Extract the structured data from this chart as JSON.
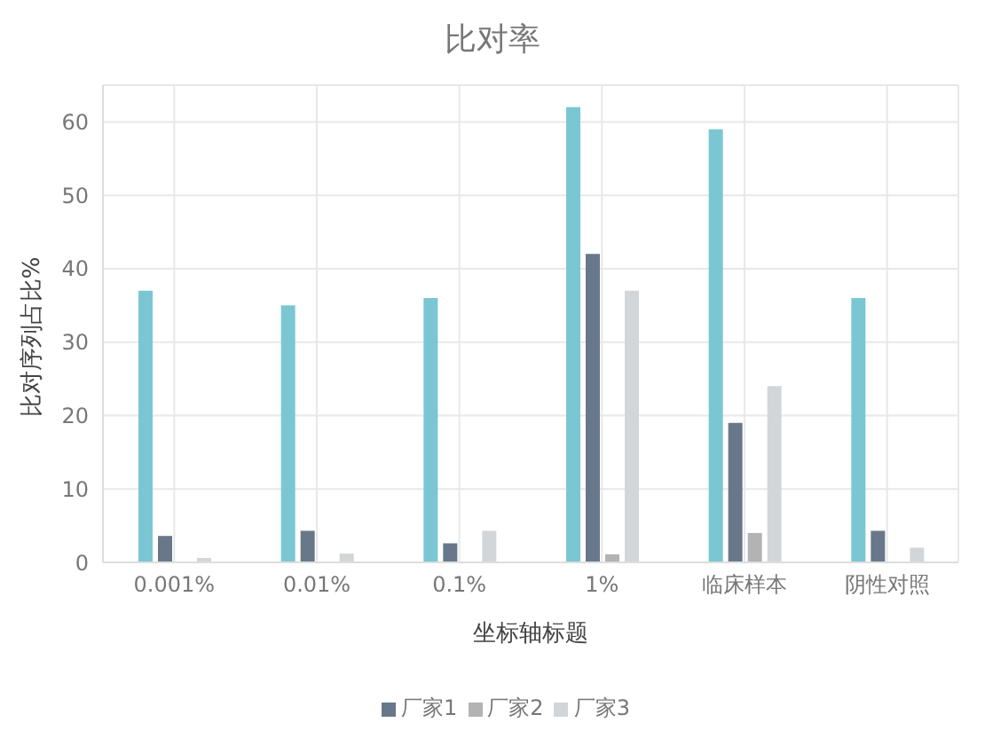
{
  "chart_data": {
    "type": "bar",
    "title": "比对率",
    "xlabel": "坐标轴标题",
    "ylabel": "比对序列占比%",
    "categories": [
      "0.001%",
      "0.01%",
      "0.1%",
      "1%",
      "临床样本",
      "阴性对照"
    ],
    "series": [
      {
        "color": "#7ac7d3",
        "values": [
          37,
          35,
          36,
          62,
          59,
          36
        ]
      },
      {
        "name": "厂家1",
        "color": "#68788a",
        "values": [
          3.6,
          4.3,
          2.6,
          42,
          19,
          4.3
        ]
      },
      {
        "name": "厂家2",
        "color": "#b3b3b3",
        "values": [
          0,
          0,
          0,
          1.1,
          4,
          0
        ]
      },
      {
        "name": "厂家3",
        "color": "#d3d6d8",
        "values": [
          0.6,
          1.2,
          4.3,
          37,
          24,
          2
        ]
      }
    ],
    "ylim": [
      0,
      65
    ],
    "yticks": [
      0,
      10,
      20,
      30,
      40,
      50,
      60
    ],
    "grid": true,
    "legend": "bottom"
  }
}
